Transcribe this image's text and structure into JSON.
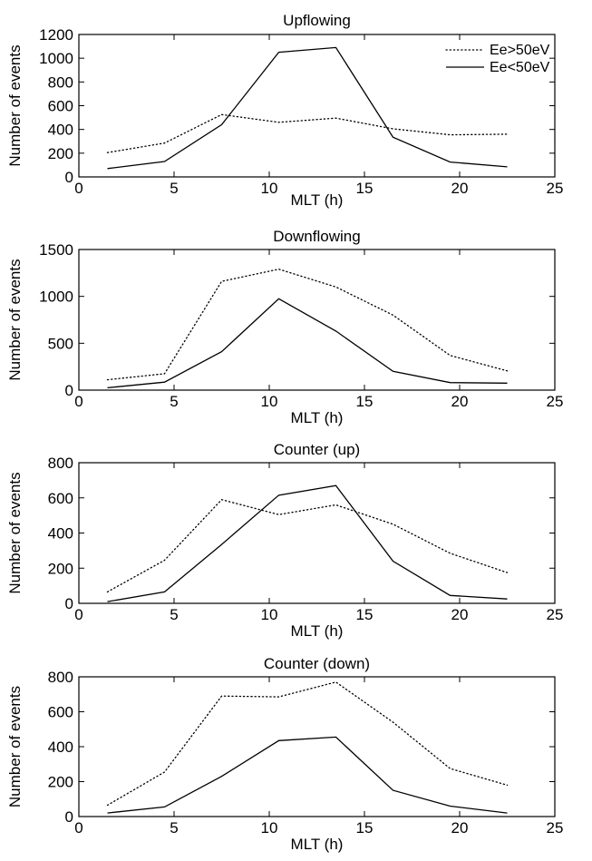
{
  "chart_data": [
    {
      "type": "line",
      "title": "Upflowing",
      "xlabel": "MLT (h)",
      "ylabel": "Number of events",
      "xlim": [
        0,
        25
      ],
      "ylim": [
        0,
        1200
      ],
      "xticks": [
        0,
        5,
        10,
        15,
        20,
        25
      ],
      "yticks": [
        0,
        200,
        400,
        600,
        800,
        1000,
        1200
      ],
      "x": [
        1.5,
        4.5,
        7.5,
        10.5,
        13.5,
        16.5,
        19.5,
        22.5
      ],
      "legend": {
        "position": "top-right"
      },
      "series": [
        {
          "name": "Ee>50eV",
          "style": "dotted",
          "values": [
            205,
            285,
            525,
            460,
            495,
            405,
            355,
            360
          ]
        },
        {
          "name": "Ee<50eV",
          "style": "solid",
          "values": [
            70,
            130,
            440,
            1050,
            1090,
            335,
            125,
            85
          ]
        }
      ]
    },
    {
      "type": "line",
      "title": "Downflowing",
      "xlabel": "MLT (h)",
      "ylabel": "Number of events",
      "xlim": [
        0,
        25
      ],
      "ylim": [
        0,
        1500
      ],
      "xticks": [
        0,
        5,
        10,
        15,
        20,
        25
      ],
      "yticks": [
        0,
        500,
        1000,
        1500
      ],
      "x": [
        1.5,
        4.5,
        7.5,
        10.5,
        13.5,
        16.5,
        19.5,
        22.5
      ],
      "series": [
        {
          "style": "dotted",
          "values": [
            110,
            175,
            1160,
            1290,
            1100,
            800,
            370,
            205
          ]
        },
        {
          "style": "solid",
          "values": [
            25,
            85,
            410,
            975,
            630,
            200,
            80,
            75
          ]
        }
      ]
    },
    {
      "type": "line",
      "title": "Counter (up)",
      "xlabel": "MLT (h)",
      "ylabel": "Number of events",
      "xlim": [
        0,
        25
      ],
      "ylim": [
        0,
        800
      ],
      "xticks": [
        0,
        5,
        10,
        15,
        20,
        25
      ],
      "yticks": [
        0,
        200,
        400,
        600,
        800
      ],
      "x": [
        1.5,
        4.5,
        7.5,
        10.5,
        13.5,
        16.5,
        19.5,
        22.5
      ],
      "series": [
        {
          "style": "dotted",
          "values": [
            65,
            245,
            590,
            505,
            560,
            450,
            285,
            175
          ]
        },
        {
          "style": "solid",
          "values": [
            10,
            65,
            335,
            615,
            670,
            240,
            45,
            25
          ]
        }
      ]
    },
    {
      "type": "line",
      "title": "Counter (down)",
      "xlabel": "MLT (h)",
      "ylabel": "Number of events",
      "xlim": [
        0,
        25
      ],
      "ylim": [
        0,
        800
      ],
      "xticks": [
        0,
        5,
        10,
        15,
        20,
        25
      ],
      "yticks": [
        0,
        200,
        400,
        600,
        800
      ],
      "x": [
        1.5,
        4.5,
        7.5,
        10.5,
        13.5,
        16.5,
        19.5,
        22.5
      ],
      "series": [
        {
          "style": "dotted",
          "values": [
            65,
            255,
            690,
            685,
            770,
            540,
            275,
            180
          ]
        },
        {
          "style": "solid",
          "values": [
            20,
            55,
            230,
            435,
            455,
            150,
            60,
            20
          ]
        }
      ]
    }
  ]
}
